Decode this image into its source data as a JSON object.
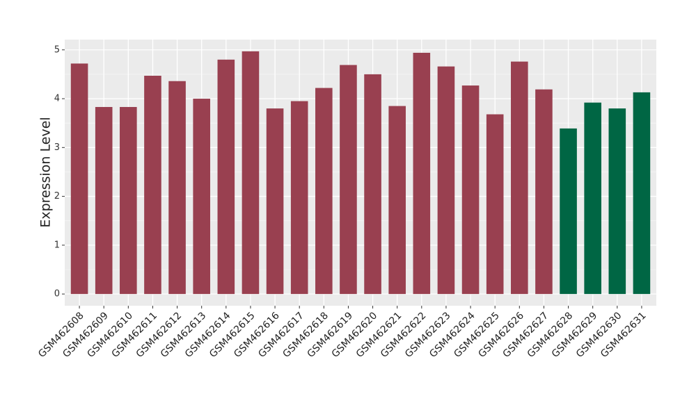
{
  "chart_data": {
    "type": "bar",
    "y_label": "Expression Level",
    "categories": [
      "GSM462608",
      "GSM462609",
      "GSM462610",
      "GSM462611",
      "GSM462612",
      "GSM462613",
      "GSM462614",
      "GSM462615",
      "GSM462616",
      "GSM462617",
      "GSM462618",
      "GSM462619",
      "GSM462620",
      "GSM462621",
      "GSM462622",
      "GSM462623",
      "GSM462624",
      "GSM462625",
      "GSM462626",
      "GSM462627",
      "GSM462628",
      "GSM462629",
      "GSM462630",
      "GSM462631"
    ],
    "values": [
      4.72,
      3.83,
      3.83,
      4.47,
      4.36,
      4.0,
      4.8,
      4.97,
      3.8,
      3.95,
      4.22,
      4.69,
      4.5,
      3.85,
      4.94,
      4.66,
      4.27,
      3.68,
      4.76,
      4.19,
      3.39,
      3.92,
      3.8,
      4.13
    ],
    "colors": [
      "#994050",
      "#994050",
      "#994050",
      "#994050",
      "#994050",
      "#994050",
      "#994050",
      "#994050",
      "#994050",
      "#994050",
      "#994050",
      "#994050",
      "#994050",
      "#994050",
      "#994050",
      "#994050",
      "#994050",
      "#994050",
      "#994050",
      "#994050",
      "#006644",
      "#006644",
      "#006644",
      "#006644"
    ],
    "ylim": [
      -0.24,
      5.21
    ],
    "yticks": [
      0,
      1,
      2,
      3,
      4,
      5
    ],
    "y_minor_ticks": [
      0.5,
      1.5,
      2.5,
      3.5,
      4.5
    ],
    "grid": true
  }
}
